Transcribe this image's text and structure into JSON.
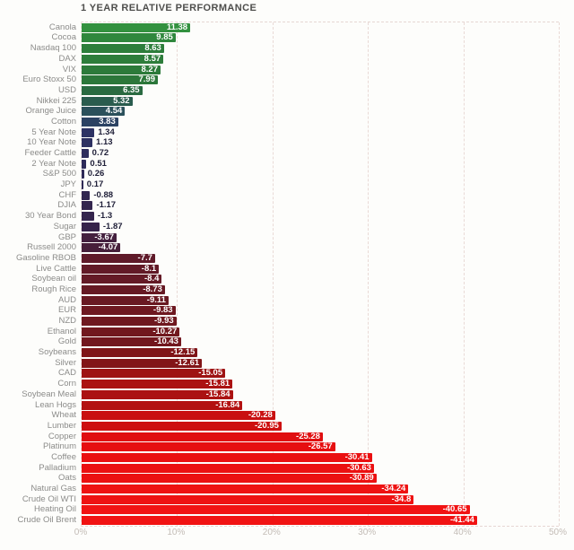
{
  "title": "1 YEAR RELATIVE PERFORMANCE",
  "colors": {
    "background": "#fdfdfb",
    "title_text": "#4e4e4c",
    "category_label": "#8c8c8a",
    "axis_label": "#c3bcb6",
    "grid": "#e9dad6",
    "value_label_inside": "#ffffff",
    "value_label_outside": "#21213a"
  },
  "chart_data": {
    "type": "bar",
    "orientation": "horizontal",
    "title": "1 YEAR RELATIVE PERFORMANCE",
    "xlabel": "",
    "ylabel": "",
    "grid": "dashed vertical",
    "legend": "none",
    "bar_length_note": "bar length encodes absolute value of performance percent",
    "x_axis": {
      "range": [
        0,
        50
      ],
      "tick_values": [
        0,
        10,
        20,
        30,
        40,
        50
      ],
      "tick_labels": [
        "0%",
        "10%",
        "20%",
        "30%",
        "40%",
        "50%"
      ]
    },
    "categories": [
      "Canola",
      "Cocoa",
      "Nasdaq 100",
      "DAX",
      "VIX",
      "Euro Stoxx 50",
      "USD",
      "Nikkei 225",
      "Orange Juice",
      "Cotton",
      "5 Year Note",
      "10 Year Note",
      "Feeder Cattle",
      "2 Year Note",
      "S&P 500",
      "JPY",
      "CHF",
      "DJIA",
      "30 Year Bond",
      "Sugar",
      "GBP",
      "Russell 2000",
      "Gasoline RBOB",
      "Live Cattle",
      "Soybean oil",
      "Rough Rice",
      "AUD",
      "EUR",
      "NZD",
      "Ethanol",
      "Gold",
      "Soybeans",
      "Silver",
      "CAD",
      "Corn",
      "Soybean Meal",
      "Lean Hogs",
      "Wheat",
      "Lumber",
      "Copper",
      "Platinum",
      "Coffee",
      "Palladium",
      "Oats",
      "Natural Gas",
      "Crude Oil WTI",
      "Heating Oil",
      "Crude Oil Brent"
    ],
    "values": [
      11.38,
      9.85,
      8.63,
      8.57,
      8.27,
      7.99,
      6.35,
      5.32,
      4.54,
      3.83,
      1.34,
      1.13,
      0.72,
      0.51,
      0.26,
      0.17,
      -0.88,
      -1.17,
      -1.3,
      -1.87,
      -3.67,
      -4.07,
      -7.7,
      -8.1,
      -8.4,
      -8.73,
      -9.11,
      -9.83,
      -9.93,
      -10.27,
      -10.43,
      -12.15,
      -12.61,
      -15.05,
      -15.81,
      -15.84,
      -16.84,
      -20.28,
      -20.95,
      -25.28,
      -26.57,
      -30.41,
      -30.63,
      -30.89,
      -34.24,
      -34.8,
      -40.65,
      -41.44
    ],
    "bar_colors": [
      "#33913f",
      "#2f873d",
      "#2d7e3b",
      "#2d7d3b",
      "#2c7a3a",
      "#2c773a",
      "#2a6a41",
      "#2a5c4e",
      "#2b505b",
      "#2c4263",
      "#2d3264",
      "#2d3061",
      "#2e2d5d",
      "#2e2b5a",
      "#2f2a58",
      "#2f2a56",
      "#322650",
      "#33254e",
      "#34244d",
      "#36234a",
      "#44203e",
      "#471f3a",
      "#5f1a29",
      "#621a27",
      "#641a26",
      "#661923",
      "#691922",
      "#6e1820",
      "#6f181f",
      "#71181e",
      "#72171e",
      "#7f1518",
      "#821517",
      "#9e1313",
      "#ab1212",
      "#ab1212",
      "#b31111",
      "#c91010",
      "#cd0f10",
      "#e00e10",
      "#e60e10",
      "#ea1011",
      "#eb1011",
      "#eb1011",
      "#ee1212",
      "#ee1212",
      "#f11313",
      "#f11313"
    ]
  }
}
